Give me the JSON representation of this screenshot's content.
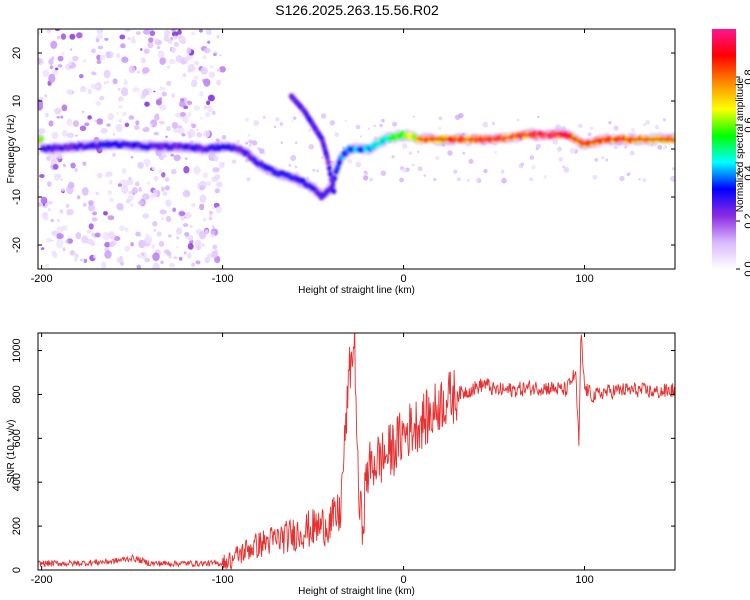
{
  "title": "S126.2025.263.15.56.R02",
  "chart_data": [
    {
      "type": "heatmap",
      "title": "S126.2025.263.15.56.R02",
      "xlabel": "Height of straight line (km)",
      "ylabel": "Frequency (Hz)",
      "xlim": [
        -202,
        150
      ],
      "ylim": [
        -25,
        25
      ],
      "xticks": [
        -200,
        -100,
        0,
        100
      ],
      "yticks": [
        -20,
        -10,
        0,
        10,
        20
      ],
      "colorbar": {
        "label": "Normalized spectral amplitude",
        "range": [
          0,
          1
        ],
        "ticks": [
          0.0,
          0.2,
          0.4,
          0.6,
          0.8
        ],
        "colors": [
          "#ffffff",
          "#d9b8ff",
          "#8a2be2",
          "#0000ff",
          "#00ffff",
          "#00ff00",
          "#ffff00",
          "#ff8800",
          "#ff0000",
          "#ff1493"
        ]
      },
      "ridge": {
        "x": [
          -200,
          -180,
          -160,
          -140,
          -120,
          -110,
          -100,
          -90,
          -80,
          -70,
          -60,
          -50,
          -45,
          -40,
          -35,
          -30,
          -20,
          -10,
          0,
          10,
          30,
          50,
          70,
          80,
          90,
          95,
          100,
          110,
          130,
          150
        ],
        "frequency": [
          0,
          0.5,
          1,
          0.5,
          0.5,
          0,
          0.5,
          0,
          -3,
          -5,
          -6,
          -8,
          -10,
          -8,
          -2,
          0,
          0,
          2,
          3,
          2,
          2,
          2,
          3,
          3,
          3,
          2,
          1,
          2,
          2,
          2
        ],
        "amplitude": [
          0.3,
          0.3,
          0.35,
          0.3,
          0.3,
          0.3,
          0.35,
          0.3,
          0.3,
          0.35,
          0.35,
          0.3,
          0.3,
          0.3,
          0.4,
          0.4,
          0.45,
          0.55,
          0.6,
          0.8,
          0.85,
          0.9,
          0.9,
          0.95,
          0.9,
          0.8,
          0.8,
          0.85,
          0.85,
          0.8
        ]
      },
      "branch": {
        "x": [
          -62,
          -55,
          -50,
          -45,
          -42,
          -40,
          -38
        ],
        "frequency": [
          11,
          8,
          5,
          2,
          -2,
          -6,
          -10
        ]
      },
      "noise_region": [
        -202,
        -100
      ]
    },
    {
      "type": "line",
      "xlabel": "Height of straight line (km)",
      "ylabel": "SNR (10 * v/v)",
      "xlim": [
        -202,
        150
      ],
      "ylim": [
        0,
        1080
      ],
      "xticks": [
        -200,
        -100,
        0,
        100
      ],
      "yticks": [
        0,
        200,
        400,
        600,
        800,
        1000
      ],
      "color": "#e83030",
      "series": [
        {
          "name": "SNR",
          "x": [
            -202,
            -180,
            -160,
            -150,
            -140,
            -120,
            -100,
            -95,
            -85,
            -75,
            -65,
            -55,
            -45,
            -40,
            -35,
            -30,
            -27,
            -25,
            -23,
            -20,
            -15,
            -10,
            -5,
            0,
            5,
            10,
            15,
            20,
            25,
            30,
            40,
            45,
            50,
            60,
            70,
            80,
            90,
            95,
            97,
            98,
            100,
            105,
            110,
            120,
            130,
            140,
            150
          ],
          "values": [
            30,
            30,
            40,
            55,
            30,
            30,
            30,
            50,
            100,
            130,
            150,
            180,
            200,
            220,
            260,
            900,
            1040,
            350,
            200,
            450,
            500,
            520,
            560,
            620,
            650,
            680,
            700,
            760,
            780,
            800,
            830,
            850,
            820,
            820,
            830,
            830,
            820,
            900,
            560,
            1080,
            830,
            790,
            810,
            820,
            820,
            810,
            820
          ]
        }
      ]
    }
  ]
}
